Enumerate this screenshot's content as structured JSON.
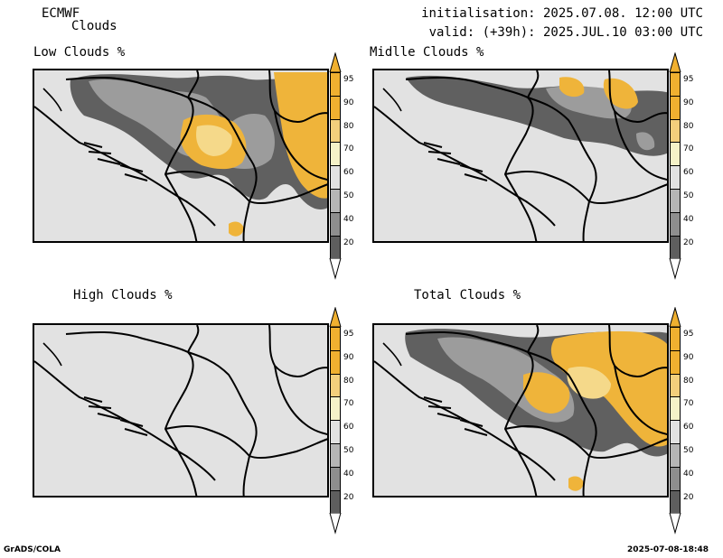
{
  "header": {
    "model": "ECMWF",
    "product": "Clouds",
    "init_line": "initialisation: 2025.07.08. 12:00 UTC",
    "valid_line": "valid: (+39h): 2025.JUL.10 03:00 UTC"
  },
  "panels": [
    {
      "title": "Low Clouds %",
      "coverage": "high"
    },
    {
      "title": "Midlle Clouds %",
      "coverage": "medium"
    },
    {
      "title": "High Clouds %",
      "coverage": "none"
    },
    {
      "title": "Total Clouds %",
      "coverage": "high"
    }
  ],
  "colorbar": {
    "levels": [
      "95",
      "90",
      "80",
      "70",
      "60",
      "50",
      "40",
      "20"
    ],
    "colors": [
      "#f0b030",
      "#f0b030",
      "#f3cf7c",
      "#f5f2c8",
      "#e2e2e2",
      "#b5b5b5",
      "#8e8e8e",
      "#5e5e5e"
    ]
  },
  "colors": {
    "background": "#e2e2e2",
    "high_cloud": "#efb43a",
    "light_cloud": "#f5d98a",
    "dark_cloud": "#606060",
    "mid_gray": "#9c9c9c"
  },
  "footer": {
    "left": "GrADS/COLA",
    "right": "2025-07-08-18:48"
  }
}
